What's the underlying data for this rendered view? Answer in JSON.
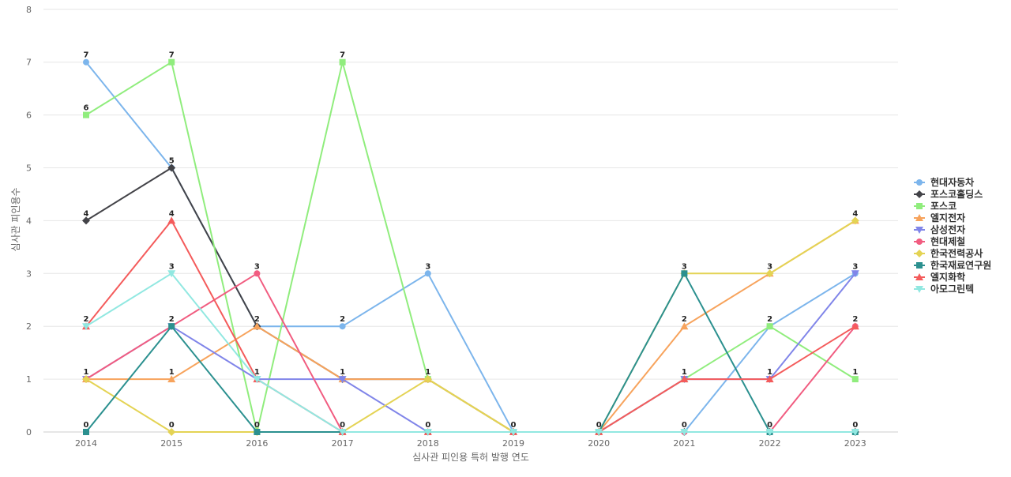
{
  "chart_data": {
    "type": "line",
    "title": "",
    "xlabel": "심사관 피인용 특허 발행 연도",
    "ylabel": "심사관 피인용수",
    "x": [
      "2014",
      "2015",
      "2016",
      "2017",
      "2018",
      "2019",
      "2020",
      "2021",
      "2022",
      "2023"
    ],
    "ylim": [
      0,
      8
    ],
    "yticks": [
      0,
      1,
      2,
      3,
      4,
      5,
      6,
      7,
      8
    ],
    "grid": true,
    "legend_position": "right",
    "series": [
      {
        "name": "현대자동차",
        "color": "#7cb5ec",
        "marker": "circle",
        "values": [
          7,
          5,
          2,
          2,
          3,
          0,
          0,
          0,
          2,
          3
        ]
      },
      {
        "name": "포스코홀딩스",
        "color": "#434348",
        "marker": "diamond",
        "values": [
          4,
          5,
          2,
          1,
          1,
          0,
          0,
          0,
          0,
          0
        ]
      },
      {
        "name": "포스코",
        "color": "#90ed7d",
        "marker": "square",
        "values": [
          6,
          7,
          0,
          7,
          1,
          0,
          0,
          1,
          2,
          1
        ]
      },
      {
        "name": "엘지전자",
        "color": "#f7a35c",
        "marker": "triangle",
        "values": [
          1,
          1,
          2,
          1,
          1,
          0,
          0,
          2,
          3,
          4
        ]
      },
      {
        "name": "삼성전자",
        "color": "#8085e9",
        "marker": "triangle-down",
        "values": [
          1,
          2,
          1,
          1,
          0,
          0,
          0,
          1,
          1,
          3
        ]
      },
      {
        "name": "현대제철",
        "color": "#f15c80",
        "marker": "circle",
        "values": [
          1,
          2,
          3,
          0,
          0,
          0,
          0,
          0,
          0,
          2
        ]
      },
      {
        "name": "한국전력공사",
        "color": "#e4d354",
        "marker": "diamond",
        "values": [
          1,
          0,
          0,
          0,
          1,
          0,
          0,
          3,
          3,
          4
        ]
      },
      {
        "name": "한국재료연구원",
        "color": "#2b908f",
        "marker": "square",
        "values": [
          0,
          2,
          0,
          0,
          0,
          0,
          0,
          3,
          0,
          0
        ]
      },
      {
        "name": "엘지화학",
        "color": "#f45b5b",
        "marker": "triangle",
        "values": [
          2,
          4,
          1,
          0,
          0,
          0,
          0,
          1,
          1,
          2
        ]
      },
      {
        "name": "아모그린텍",
        "color": "#91e8e1",
        "marker": "triangle-down",
        "values": [
          2,
          3,
          1,
          0,
          0,
          0,
          0,
          0,
          0,
          0
        ]
      }
    ],
    "data_labels": [
      {
        "x": "2014",
        "y": 7,
        "text": "7"
      },
      {
        "x": "2014",
        "y": 6,
        "text": "6"
      },
      {
        "x": "2014",
        "y": 4,
        "text": "4"
      },
      {
        "x": "2014",
        "y": 2,
        "text": "2"
      },
      {
        "x": "2014",
        "y": 1,
        "text": "1"
      },
      {
        "x": "2014",
        "y": 0,
        "text": "0"
      },
      {
        "x": "2015",
        "y": 7,
        "text": "7"
      },
      {
        "x": "2015",
        "y": 5,
        "text": "5"
      },
      {
        "x": "2015",
        "y": 4,
        "text": "4"
      },
      {
        "x": "2015",
        "y": 3,
        "text": "3"
      },
      {
        "x": "2015",
        "y": 2,
        "text": "2"
      },
      {
        "x": "2015",
        "y": 1,
        "text": "1"
      },
      {
        "x": "2015",
        "y": 0,
        "text": "0"
      },
      {
        "x": "2016",
        "y": 3,
        "text": "3"
      },
      {
        "x": "2016",
        "y": 2,
        "text": "2"
      },
      {
        "x": "2016",
        "y": 1,
        "text": "1"
      },
      {
        "x": "2016",
        "y": 0,
        "text": "0"
      },
      {
        "x": "2017",
        "y": 7,
        "text": "7"
      },
      {
        "x": "2017",
        "y": 2,
        "text": "2"
      },
      {
        "x": "2017",
        "y": 1,
        "text": "1"
      },
      {
        "x": "2017",
        "y": 0,
        "text": "0"
      },
      {
        "x": "2018",
        "y": 3,
        "text": "3"
      },
      {
        "x": "2018",
        "y": 1,
        "text": "1"
      },
      {
        "x": "2018",
        "y": 0,
        "text": "0"
      },
      {
        "x": "2019",
        "y": 0,
        "text": "0"
      },
      {
        "x": "2020",
        "y": 0,
        "text": "0"
      },
      {
        "x": "2021",
        "y": 3,
        "text": "3"
      },
      {
        "x": "2021",
        "y": 2,
        "text": "2"
      },
      {
        "x": "2021",
        "y": 1,
        "text": "1"
      },
      {
        "x": "2021",
        "y": 0,
        "text": "0"
      },
      {
        "x": "2022",
        "y": 3,
        "text": "3"
      },
      {
        "x": "2022",
        "y": 2,
        "text": "2"
      },
      {
        "x": "2022",
        "y": 1,
        "text": "1"
      },
      {
        "x": "2022",
        "y": 0,
        "text": "0"
      },
      {
        "x": "2023",
        "y": 4,
        "text": "4"
      },
      {
        "x": "2023",
        "y": 3,
        "text": "3"
      },
      {
        "x": "2023",
        "y": 2,
        "text": "2"
      },
      {
        "x": "2023",
        "y": 1,
        "text": "1"
      },
      {
        "x": "2023",
        "y": 0,
        "text": "0"
      }
    ]
  }
}
